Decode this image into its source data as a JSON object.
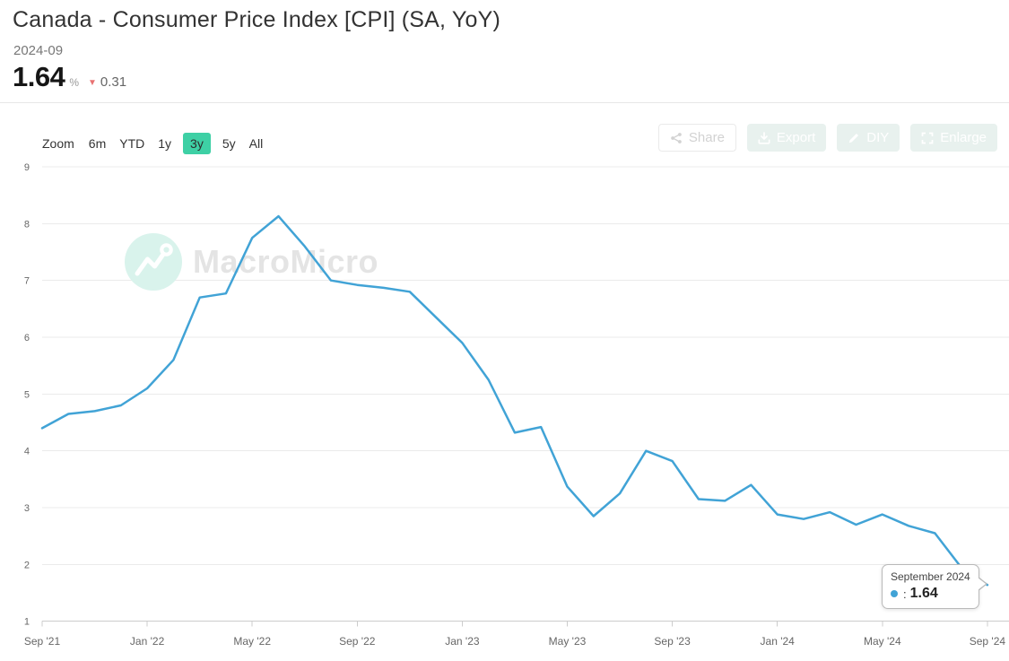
{
  "header": {
    "title": "Canada - Consumer Price Index [CPI] (SA, YoY)",
    "date": "2024-09",
    "latest_value": "1.64",
    "unit": "%",
    "change": "0.31",
    "change_direction": "down"
  },
  "icons": {
    "down_triangle": "▼"
  },
  "range_selector": {
    "zoom_label": "Zoom",
    "options": [
      "6m",
      "YTD",
      "1y",
      "3y",
      "5y",
      "All"
    ],
    "selected": "3y"
  },
  "actions": {
    "share": {
      "label": "Share",
      "icon": "share-icon"
    },
    "export": {
      "label": "Export",
      "icon": "download-icon"
    },
    "diy": {
      "label": "DIY",
      "icon": "pencil-icon"
    },
    "enlarge": {
      "label": "Enlarge",
      "icon": "expand-icon"
    }
  },
  "watermark": {
    "text": "MacroMicro",
    "icon": "macromicro-logo-icon"
  },
  "tooltip": {
    "date_label": "September 2024",
    "separator": ":",
    "value": "1.64",
    "series_color": "#41a3d6"
  },
  "colors": {
    "line": "#41a3d6",
    "grid": "#ebebeb",
    "axis": "#cccccc",
    "axis_label": "#666666",
    "selected_range_bg": "#3ed0a5",
    "negative": "#e87272"
  },
  "chart_data": {
    "type": "line",
    "title": "Canada - Consumer Price Index [CPI] (SA, YoY)",
    "xlabel": "",
    "ylabel": "",
    "x": [
      "Sep '21",
      "Oct '21",
      "Nov '21",
      "Dec '21",
      "Jan '22",
      "Feb '22",
      "Mar '22",
      "Apr '22",
      "May '22",
      "Jun '22",
      "Jul '22",
      "Aug '22",
      "Sep '22",
      "Oct '22",
      "Nov '22",
      "Dec '22",
      "Jan '23",
      "Feb '23",
      "Mar '23",
      "Apr '23",
      "May '23",
      "Jun '23",
      "Jul '23",
      "Aug '23",
      "Sep '23",
      "Oct '23",
      "Nov '23",
      "Dec '23",
      "Jan '24",
      "Feb '24",
      "Mar '24",
      "Apr '24",
      "May '24",
      "Jun '24",
      "Jul '24",
      "Aug '24",
      "Sep '24"
    ],
    "series": [
      {
        "name": "",
        "color": "#41a3d6",
        "values": [
          4.4,
          4.65,
          4.7,
          4.8,
          5.1,
          5.6,
          6.7,
          6.77,
          7.75,
          8.13,
          7.6,
          7.0,
          6.92,
          6.87,
          6.8,
          6.35,
          5.9,
          5.25,
          4.32,
          4.42,
          3.37,
          2.85,
          3.25,
          4.0,
          3.82,
          3.15,
          3.12,
          3.4,
          2.88,
          2.8,
          2.92,
          2.7,
          2.88,
          2.68,
          2.55,
          1.95,
          1.64
        ]
      }
    ],
    "ylim": [
      1,
      9
    ],
    "yticks": [
      1,
      2,
      3,
      4,
      5,
      6,
      7,
      8,
      9
    ],
    "xtick_every": 4,
    "xtick_labels": [
      "Sep '21",
      "Jan '22",
      "May '22",
      "Sep '22",
      "Jan '23",
      "May '23",
      "Sep '23",
      "Jan '24",
      "May '24",
      "Sep '24"
    ],
    "grid": true,
    "legend": "none",
    "last_point": {
      "label": "September 2024",
      "value": 1.64
    }
  }
}
